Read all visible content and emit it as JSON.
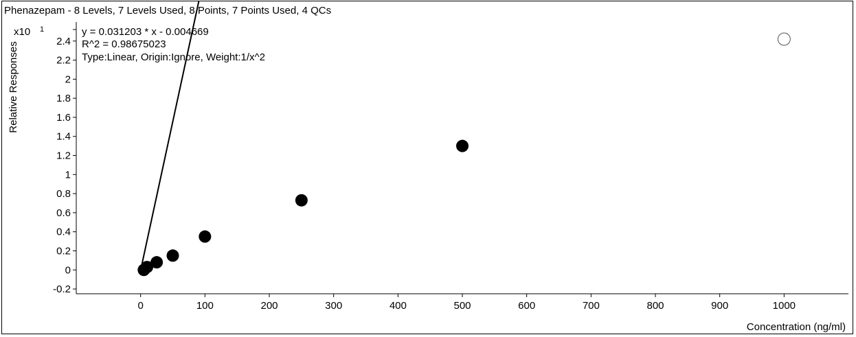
{
  "chart_data": {
    "type": "scatter",
    "title": "Phenazepam - 8 Levels, 7 Levels Used, 8 Points, 7 Points Used, 4 QCs",
    "xlabel": "Concentration (ng/ml)",
    "ylabel": "Relative Responses",
    "y_multiplier_label": "x10",
    "y_multiplier_exp": "1",
    "annotations": [
      "y = 0.031203 * x  - 0.004669",
      "R^2 = 0.98675023",
      "Type:Linear, Origin:Ignore, Weight:1/x^2"
    ],
    "xlim": [
      -100,
      1100
    ],
    "ylim": [
      -0.25,
      2.6
    ],
    "x_ticks": [
      0,
      100,
      200,
      300,
      400,
      500,
      600,
      700,
      800,
      900,
      1000
    ],
    "x_tick_labels": [
      "0",
      "100",
      "200",
      "300",
      "400",
      "500",
      "600",
      "700",
      "800",
      "900",
      "1000"
    ],
    "y_ticks": [
      -0.2,
      0,
      0.2,
      0.4,
      0.6,
      0.8,
      1,
      1.2,
      1.4,
      1.6,
      1.8,
      2,
      2.2,
      2.4
    ],
    "y_tick_labels": [
      "-0.2",
      "0",
      "0.2",
      "0.4",
      "0.6",
      "0.8",
      "1",
      "1.2",
      "1.4",
      "1.6",
      "1.8",
      "2",
      "2.2",
      "2.4"
    ],
    "grid": false,
    "fit_line": {
      "slope": 0.0031203,
      "intercept": -0.0004669,
      "x_range": [
        0,
        866
      ]
    },
    "series": [
      {
        "name": "",
        "x": [
          5,
          10,
          25,
          50,
          100,
          250,
          500
        ],
        "y": [
          0.0,
          0.03,
          0.08,
          0.15,
          0.35,
          0.73,
          1.3
        ],
        "marker": "filled-circle"
      },
      {
        "name": "",
        "x": [
          1000
        ],
        "y": [
          2.42
        ],
        "marker": "open-circle"
      }
    ]
  }
}
